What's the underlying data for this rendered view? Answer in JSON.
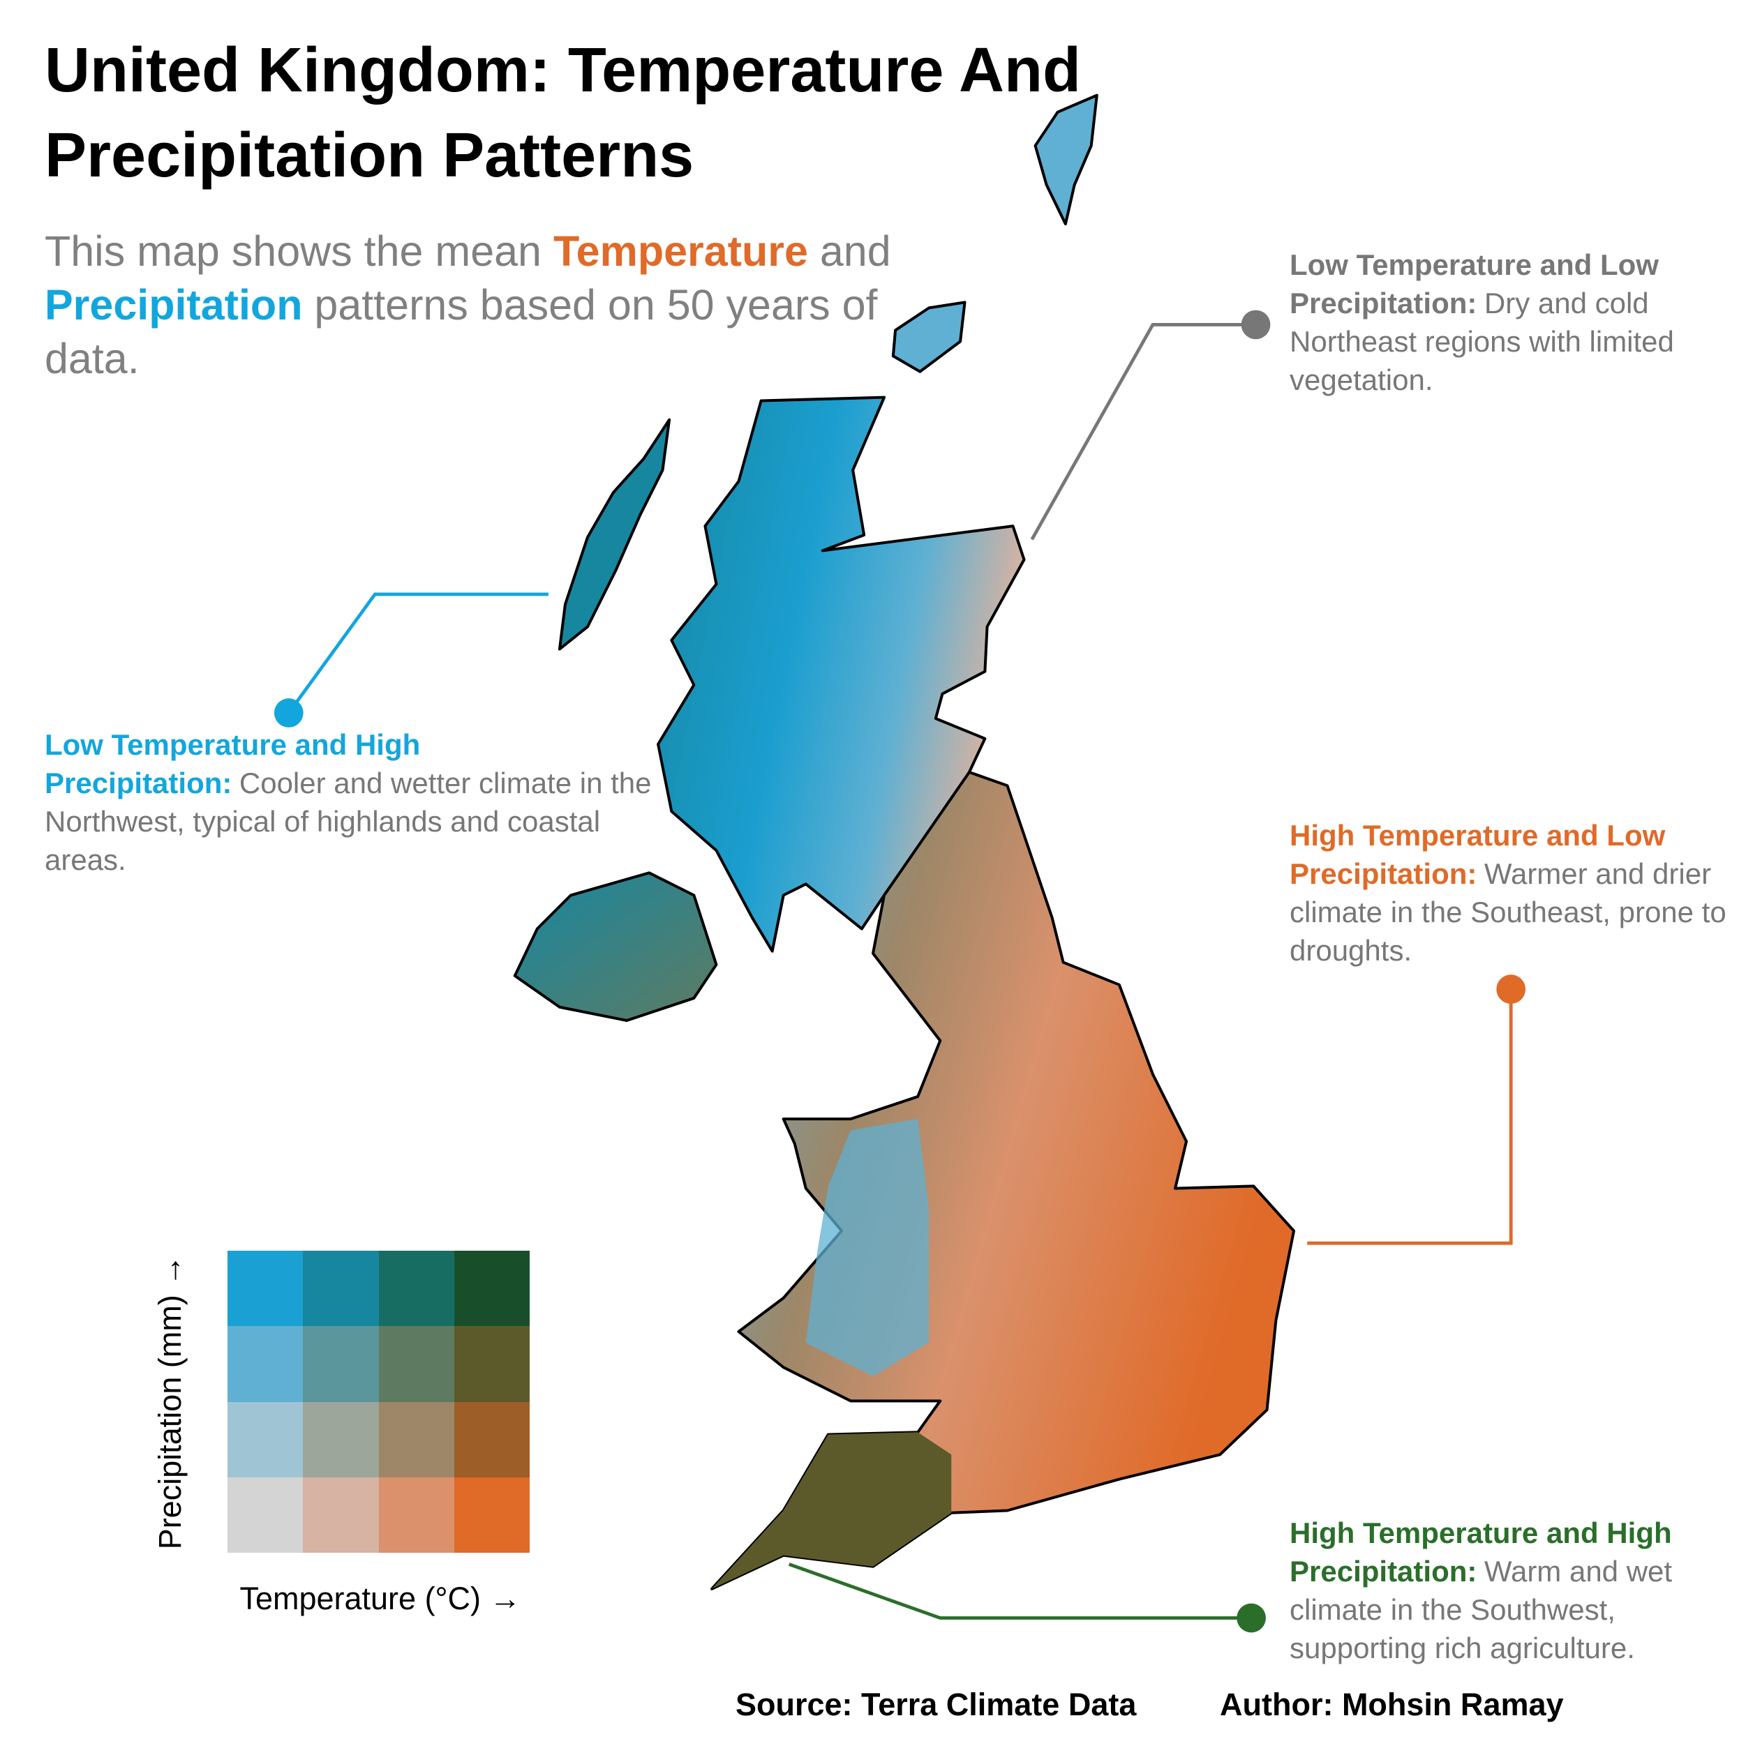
{
  "title": "United Kingdom: Temperature And Precipitation Patterns",
  "subtitle": [
    {
      "text": "This map shows the mean "
    },
    {
      "text": "Temperature",
      "color": "#e06a28"
    },
    {
      "text": " and "
    },
    {
      "text": "Precipitation",
      "color": "#12a6dd"
    },
    {
      "text": " patterns based on 50 years of data."
    }
  ],
  "annotations": [
    {
      "heading": "Low Temperature and Low Precipitation:",
      "body": "Dry and cold Northeast regions with limited vegetation.",
      "color": "#777777"
    },
    {
      "heading": "Low Temperature and High Precipitation:",
      "body": "Cooler and wetter climate in the Northwest, typical of highlands and coastal areas.",
      "color": "#12a6dd"
    },
    {
      "heading": "High Temperature and Low Precipitation:",
      "body": "Warmer and drier climate in the Southeast, prone to droughts.",
      "color": "#e06a28"
    },
    {
      "heading": "High Temperature and High Precipitation:",
      "body": "Warm and wet climate in the Southwest, supporting rich agriculture.",
      "color": "#2a6e2a"
    }
  ],
  "legend": {
    "x_label": "Temperature (°C) →",
    "y_label": "Precipitation (mm) →",
    "colors": [
      [
        "#1aa0d2",
        "#1787a0",
        "#186d63",
        "#184f2a"
      ],
      [
        "#5fb0d2",
        "#5a969c",
        "#5e7b62",
        "#5c5a2a"
      ],
      [
        "#9fc5d4",
        "#9ca69a",
        "#9d8768",
        "#9e5e28"
      ],
      [
        "#d4d4d4",
        "#d6b3a2",
        "#da916c",
        "#e06a28"
      ]
    ]
  },
  "footer": {
    "source": "Source: Terra Climate Data",
    "author": "Author: Mohsin Ramay"
  }
}
